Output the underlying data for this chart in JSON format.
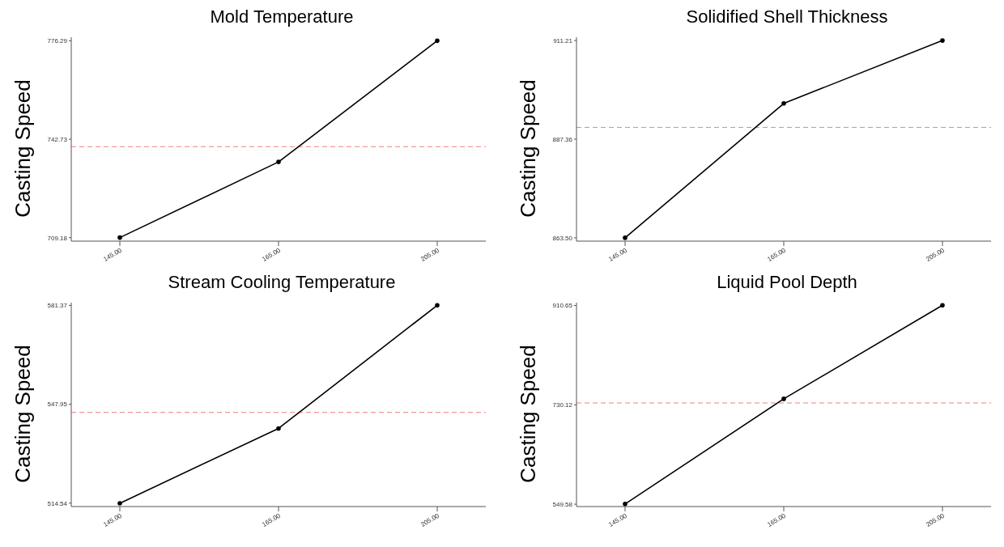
{
  "chart_data": [
    {
      "type": "line",
      "title": "Mold Temperature",
      "ylabel": "Casting Speed",
      "categories": [
        "145.00",
        "165.00",
        "205.00"
      ],
      "series": [
        {
          "color": "#000000",
          "values": [
            709.2,
            735.0,
            776.3
          ]
        }
      ],
      "ylim": [
        708.0,
        777.5
      ],
      "yticks": [
        709.18,
        742.73,
        776.29
      ],
      "ref_lines": [
        {
          "axis": "y",
          "value": 740.2,
          "color": "#f08080",
          "line_style": "dashed"
        }
      ],
      "marker": "circle",
      "line_style": "solid",
      "grid": false,
      "legend": false
    },
    {
      "type": "line",
      "title": "Solidified Shell Thickness",
      "ylabel": "Casting Speed",
      "categories": [
        "145.00",
        "165.00",
        "205.00"
      ],
      "series": [
        {
          "color": "#000000",
          "values": [
            863.5,
            896.0,
            911.2
          ]
        }
      ],
      "ylim": [
        862.7,
        912.0
      ],
      "yticks": [
        {
          "value": 863.5,
          "label": "863.50"
        },
        887.36,
        911.21
      ],
      "ref_lines": [
        {
          "axis": "y",
          "value": 890.2,
          "color": "#f08080",
          "line_style": "dashed"
        }
      ],
      "marker": "circle",
      "line_style": "solid",
      "grid": false,
      "legend": false
    },
    {
      "type": "line",
      "title": "Stream Cooling Temperature",
      "ylabel": "Casting Speed",
      "categories": [
        "145.00",
        "165.00",
        "205.00"
      ],
      "series": [
        {
          "color": "#000000",
          "values": [
            514.5,
            539.8,
            581.4
          ]
        }
      ],
      "ylim": [
        513.4,
        582.3
      ],
      "yticks": [
        514.54,
        547.95,
        581.37
      ],
      "ref_lines": [
        {
          "axis": "y",
          "value": 545.2,
          "color": "#f08080",
          "line_style": "dashed"
        }
      ],
      "marker": "circle",
      "line_style": "solid",
      "grid": false,
      "legend": false
    },
    {
      "type": "line",
      "title": "Liquid Pool Depth",
      "ylabel": "Casting Speed",
      "categories": [
        "145.00",
        "165.00",
        "205.00"
      ],
      "series": [
        {
          "color": "#000000",
          "values": [
            550,
            741,
            911
          ]
        }
      ],
      "ylim": [
        545.3,
        915.8
      ],
      "yticks": [
        549.58,
        730.12,
        910.65
      ],
      "ref_lines": [
        {
          "axis": "y",
          "value": 733.5,
          "color": "#f08080",
          "line_style": "dashed"
        }
      ],
      "marker": "circle",
      "line_style": "solid",
      "grid": false,
      "legend": false
    }
  ]
}
